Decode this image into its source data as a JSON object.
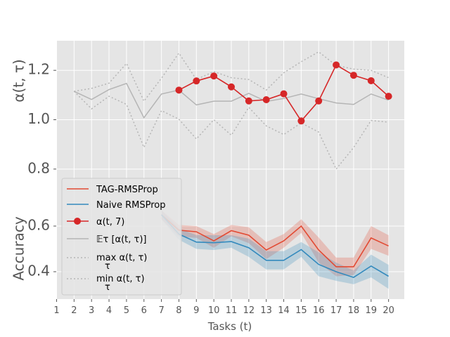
{
  "chart_data": {
    "type": "line",
    "xlabel": "Tasks (t)",
    "x_ticks": [
      1,
      2,
      3,
      4,
      5,
      6,
      7,
      8,
      9,
      10,
      11,
      12,
      13,
      14,
      15,
      16,
      17,
      18,
      19,
      20
    ],
    "top_panel": {
      "ylabel": "α(t, τ)",
      "ylim": [
        0.68,
        1.32
      ],
      "y_ticks": [
        0.8,
        1.0,
        1.2
      ],
      "y_tick_labels": [
        "0.8",
        "1.0",
        "1.2"
      ],
      "series": [
        {
          "key": "expectation",
          "color": "#b5b5b5",
          "x": [
            2,
            3,
            4,
            5,
            6,
            7,
            8,
            9,
            10,
            11,
            12,
            13,
            14,
            15,
            16,
            17,
            18,
            19,
            20
          ],
          "values": [
            1.115,
            1.082,
            1.122,
            1.147,
            1.008,
            1.104,
            1.12,
            1.06,
            1.075,
            1.075,
            1.107,
            1.074,
            1.086,
            1.104,
            1.085,
            1.068,
            1.062,
            1.104,
            1.079
          ]
        },
        {
          "key": "max",
          "color": "#b5b5b5",
          "dashed": true,
          "x": [
            2,
            3,
            4,
            5,
            6,
            7,
            8,
            9,
            10,
            11,
            12,
            13,
            14,
            15,
            16,
            17,
            18,
            19,
            20
          ],
          "values": [
            1.115,
            1.127,
            1.148,
            1.228,
            1.075,
            1.168,
            1.27,
            1.163,
            1.195,
            1.17,
            1.163,
            1.12,
            1.19,
            1.235,
            1.275,
            1.22,
            1.205,
            1.2,
            1.17
          ]
        },
        {
          "key": "min",
          "color": "#b5b5b5",
          "dashed": true,
          "x": [
            2,
            3,
            4,
            5,
            6,
            7,
            8,
            9,
            10,
            11,
            12,
            13,
            14,
            15,
            16,
            17,
            18,
            19,
            20
          ],
          "values": [
            1.115,
            1.044,
            1.095,
            1.062,
            0.888,
            1.037,
            1.002,
            0.922,
            1.0,
            0.937,
            1.05,
            0.975,
            0.94,
            0.987,
            0.95,
            0.8,
            0.887,
            0.997,
            0.99
          ]
        },
        {
          "key": "alpha_t7",
          "color": "#d62728",
          "markers": true,
          "x": [
            8,
            9,
            10,
            11,
            12,
            13,
            14,
            15,
            16,
            17,
            18,
            19,
            20
          ],
          "values": [
            1.12,
            1.157,
            1.177,
            1.133,
            1.076,
            1.081,
            1.105,
            0.995,
            1.076,
            1.222,
            1.18,
            1.158,
            1.095
          ]
        }
      ]
    },
    "bottom_panel": {
      "ylabel": "Accuracy",
      "ylim": [
        0.28,
        0.72
      ],
      "y_ticks": [
        0.4,
        0.6
      ],
      "y_tick_labels": [
        "0.4",
        "0.6"
      ],
      "series": [
        {
          "key": "tag",
          "color": "#e24a33",
          "x": [
            7,
            8,
            9,
            10,
            11,
            12,
            13,
            14,
            15,
            16,
            17,
            18,
            19,
            20
          ],
          "values": [
            0.65,
            0.582,
            0.575,
            0.535,
            0.58,
            0.56,
            0.495,
            0.535,
            0.6,
            0.495,
            0.422,
            0.422,
            0.548,
            0.513
          ],
          "band_lower": [
            0.63,
            0.555,
            0.548,
            0.505,
            0.555,
            0.525,
            0.455,
            0.505,
            0.57,
            0.44,
            0.38,
            0.385,
            0.5,
            0.47
          ],
          "band_upper": [
            0.67,
            0.605,
            0.6,
            0.565,
            0.605,
            0.595,
            0.53,
            0.565,
            0.63,
            0.55,
            0.462,
            0.462,
            0.6,
            0.56
          ]
        },
        {
          "key": "naive",
          "color": "#348abd",
          "x": [
            7,
            8,
            9,
            10,
            11,
            12,
            13,
            14,
            15,
            16,
            17,
            18,
            19,
            20
          ],
          "values": [
            0.65,
            0.565,
            0.53,
            0.527,
            0.532,
            0.505,
            0.45,
            0.45,
            0.497,
            0.432,
            0.4,
            0.375,
            0.425,
            0.38
          ],
          "band_lower": [
            0.63,
            0.54,
            0.5,
            0.495,
            0.505,
            0.465,
            0.41,
            0.41,
            0.465,
            0.38,
            0.36,
            0.345,
            0.375,
            0.325
          ],
          "band_upper": [
            0.67,
            0.59,
            0.56,
            0.56,
            0.56,
            0.545,
            0.49,
            0.49,
            0.53,
            0.485,
            0.44,
            0.405,
            0.475,
            0.43
          ]
        }
      ]
    },
    "legend": {
      "placement": "lower-left",
      "entries": [
        {
          "key": "tag",
          "label": "TAG-RMSProp",
          "color": "#e24a33",
          "style": "line"
        },
        {
          "key": "naive",
          "label": "Naive RMSProp",
          "color": "#348abd",
          "style": "line"
        },
        {
          "key": "alpha_t7",
          "label": "α(t, 7)",
          "color": "#d62728",
          "style": "line-marker"
        },
        {
          "key": "expectation",
          "label": "𝔼τ  [α(t, τ)]",
          "color": "#b5b5b5",
          "style": "line"
        },
        {
          "key": "max",
          "label": "max α(t, τ)",
          "color": "#b5b5b5",
          "style": "dotted"
        },
        {
          "key": "min",
          "label": "min α(t, τ)",
          "color": "#b5b5b5",
          "style": "dotted"
        }
      ]
    },
    "grid": true
  },
  "colors": {
    "axes_background": "#e5e5e5",
    "grid": "#ffffff"
  }
}
